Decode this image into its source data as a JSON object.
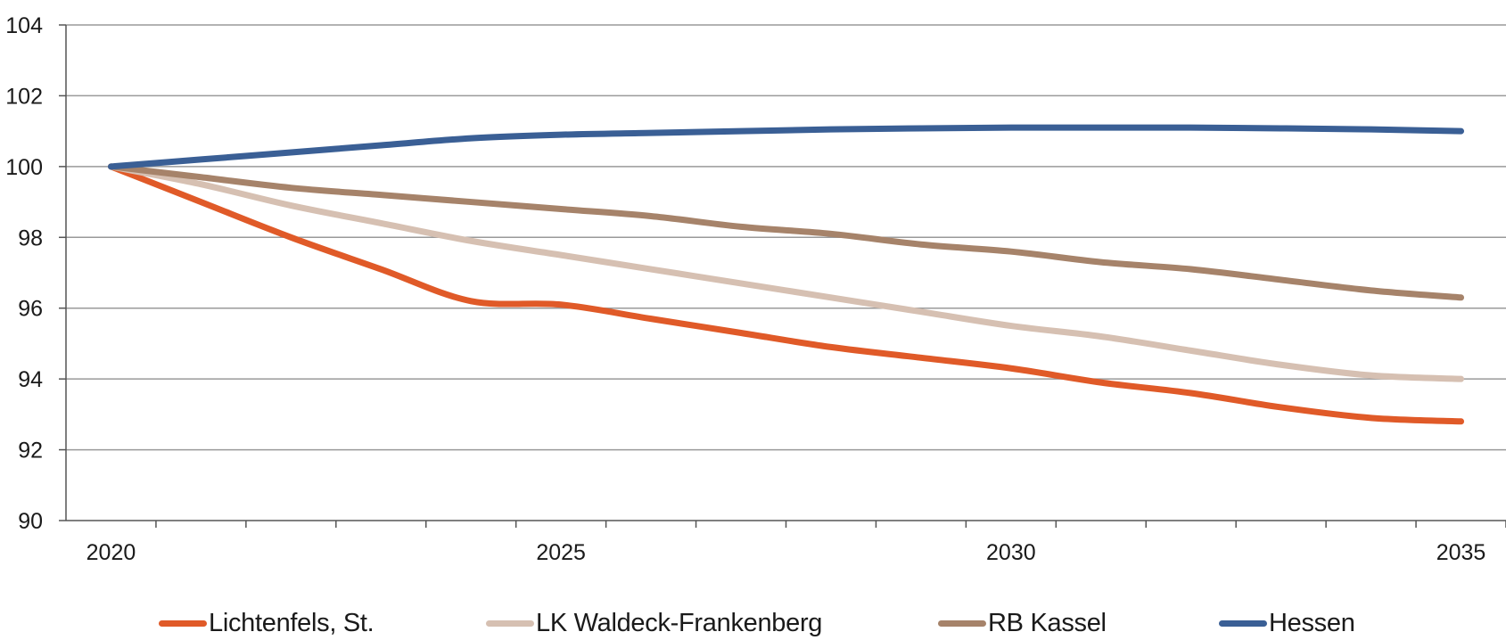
{
  "chart_data": {
    "type": "line",
    "title": "",
    "xlabel": "",
    "ylabel": "",
    "x": [
      2020,
      2021,
      2022,
      2023,
      2024,
      2025,
      2026,
      2027,
      2028,
      2029,
      2030,
      2031,
      2032,
      2033,
      2034,
      2035
    ],
    "xlim": [
      2019.5,
      2035.5
    ],
    "ylim": [
      90,
      104
    ],
    "xticks": [
      2020,
      2025,
      2030,
      2035
    ],
    "yticks": [
      90,
      92,
      94,
      96,
      98,
      100,
      102,
      104
    ],
    "grid": true,
    "legend_position": "bottom",
    "series": [
      {
        "name": "Lichtenfels, St.",
        "color": "#e05a28",
        "values": [
          100,
          99.0,
          98.0,
          97.1,
          96.2,
          96.1,
          95.7,
          95.3,
          94.9,
          94.6,
          94.3,
          93.9,
          93.6,
          93.2,
          92.9,
          92.8
        ]
      },
      {
        "name": "LK Waldeck-Frankenberg",
        "color": "#d6c0b2",
        "values": [
          100,
          99.5,
          98.9,
          98.4,
          97.9,
          97.5,
          97.1,
          96.7,
          96.3,
          95.9,
          95.5,
          95.2,
          94.8,
          94.4,
          94.1,
          94.0
        ]
      },
      {
        "name": "RB Kassel",
        "color": "#a6836a",
        "values": [
          100,
          99.7,
          99.4,
          99.2,
          99.0,
          98.8,
          98.6,
          98.3,
          98.1,
          97.8,
          97.6,
          97.3,
          97.1,
          96.8,
          96.5,
          96.3
        ]
      },
      {
        "name": "Hessen",
        "color": "#3a5f95",
        "values": [
          100,
          100.2,
          100.4,
          100.6,
          100.8,
          100.9,
          100.95,
          101.0,
          101.05,
          101.08,
          101.1,
          101.1,
          101.1,
          101.08,
          101.05,
          101.0
        ]
      }
    ]
  }
}
